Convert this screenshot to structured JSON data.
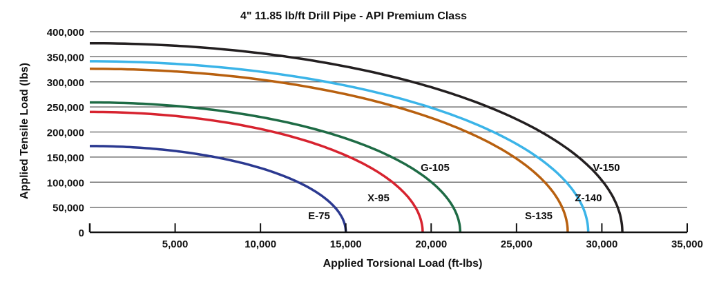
{
  "chart_data": {
    "type": "line",
    "title": "4\" 11.85 lb/ft Drill Pipe - API Premium Class",
    "xlabel": "Applied Torsional Load (ft-lbs)",
    "ylabel": "Applied Tensile Load (lbs)",
    "xlim": [
      0,
      35000
    ],
    "ylim": [
      0,
      400000
    ],
    "xticks": [
      5000,
      10000,
      15000,
      20000,
      25000,
      30000,
      35000
    ],
    "xtick_labels": [
      "5,000",
      "10,000",
      "15,000",
      "20,000",
      "25,000",
      "30,000",
      "35,000"
    ],
    "yticks": [
      0,
      50000,
      100000,
      150000,
      200000,
      250000,
      300000,
      350000,
      400000
    ],
    "ytick_labels": [
      "0",
      "50,000",
      "100,000",
      "150,000",
      "200,000",
      "250,000",
      "300,000",
      "350,000",
      "400,000"
    ],
    "grid": "horizontal",
    "legend": "inline labels",
    "series": [
      {
        "name": "E-75",
        "color": "#2b3990",
        "max_torsion": 15000,
        "max_tensile": 172000,
        "points": [
          [
            0,
            172000
          ],
          [
            5000,
            162000
          ],
          [
            10000,
            128000
          ],
          [
            12500,
            95000
          ],
          [
            14000,
            62000
          ],
          [
            15000,
            0
          ]
        ]
      },
      {
        "name": "X-95",
        "color": "#d7232f",
        "max_torsion": 19500,
        "max_tensile": 240000,
        "points": [
          [
            0,
            240000
          ],
          [
            5000,
            232000
          ],
          [
            10000,
            206000
          ],
          [
            15000,
            153000
          ],
          [
            17500,
            106000
          ],
          [
            19000,
            54000
          ],
          [
            19500,
            0
          ]
        ]
      },
      {
        "name": "G-105",
        "color": "#1e6b45",
        "max_torsion": 21700,
        "max_tensile": 259000,
        "points": [
          [
            0,
            259000
          ],
          [
            5000,
            252000
          ],
          [
            10000,
            230000
          ],
          [
            15000,
            187000
          ],
          [
            20000,
            101000
          ],
          [
            21000,
            65000
          ],
          [
            21700,
            0
          ]
        ]
      },
      {
        "name": "S-135",
        "color": "#b8600f",
        "max_torsion": 28000,
        "max_tensile": 326000,
        "points": [
          [
            0,
            326000
          ],
          [
            5000,
            321000
          ],
          [
            10000,
            304000
          ],
          [
            15000,
            275000
          ],
          [
            20000,
            228000
          ],
          [
            25000,
            147000
          ],
          [
            27000,
            86000
          ],
          [
            28000,
            0
          ]
        ]
      },
      {
        "name": "Z-140",
        "color": "#3bb4e8",
        "max_torsion": 29200,
        "max_tensile": 341000,
        "points": [
          [
            0,
            341000
          ],
          [
            5000,
            336000
          ],
          [
            10000,
            320000
          ],
          [
            15000,
            293000
          ],
          [
            20000,
            249000
          ],
          [
            25000,
            176000
          ],
          [
            28000,
            97000
          ],
          [
            29200,
            0
          ]
        ]
      },
      {
        "name": "V-150",
        "color": "#231f20",
        "max_torsion": 31200,
        "max_tensile": 377000,
        "points": [
          [
            0,
            377000
          ],
          [
            5000,
            372000
          ],
          [
            10000,
            357000
          ],
          [
            15000,
            331000
          ],
          [
            20000,
            289000
          ],
          [
            25000,
            226000
          ],
          [
            28000,
            166000
          ],
          [
            30000,
            104000
          ],
          [
            31200,
            0
          ]
        ]
      }
    ]
  }
}
